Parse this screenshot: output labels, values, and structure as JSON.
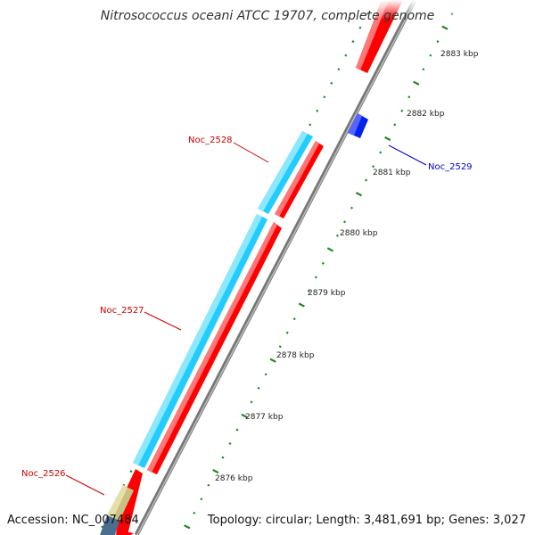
{
  "title": "Nitrosococcus oceani ATCC 19707, complete genome",
  "footer": {
    "accession": "Accession: NC_007484",
    "topology": "Topology: circular; Length: 3,481,691 bp; Genes: 3,027"
  },
  "kbp_labels": [
    "2883 kbp",
    "2882 kbp",
    "2881 kbp",
    "2880 kbp",
    "2879 kbp",
    "2878 kbp",
    "2877 kbp",
    "2876 kbp"
  ],
  "genes": [
    {
      "name": "Noc_2526",
      "color": "#cc0000"
    },
    {
      "name": "Noc_2527",
      "color": "#cc0000"
    },
    {
      "name": "Noc_2528",
      "color": "#cc0000"
    },
    {
      "name": "Noc_2529",
      "color": "#0000cc"
    }
  ],
  "colors": {
    "forward_gene": "#ff0000",
    "cds_feature": "#22ccff",
    "reverse_gene": "#0022ee",
    "misc_feature": "#c8c080",
    "backbone": "#888888",
    "tick": "#228822"
  }
}
